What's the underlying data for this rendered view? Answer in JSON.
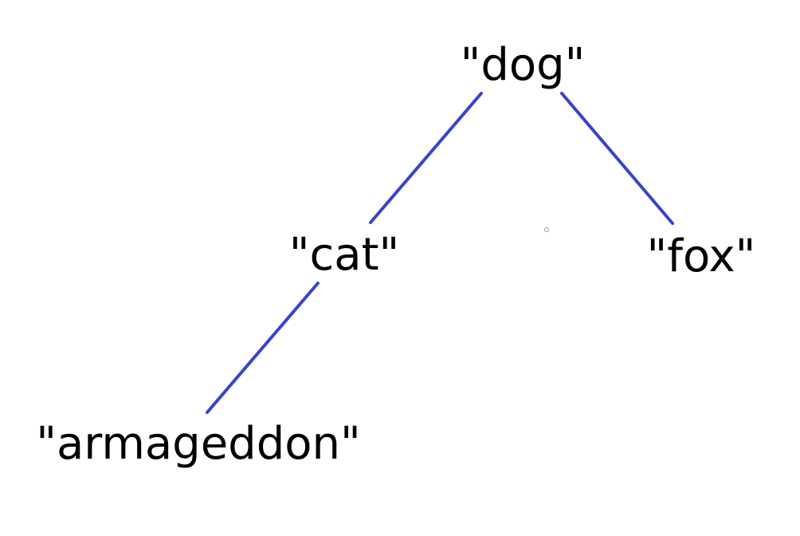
{
  "diagram": {
    "title": "",
    "edge_color": "#3b43c9",
    "text_color": "#000000",
    "dot_color": "#9a9a9a",
    "nodes": [
      {
        "id": "dog",
        "label": "\"dog\""
      },
      {
        "id": "cat",
        "label": "\"cat\""
      },
      {
        "id": "fox",
        "label": "\"fox\""
      },
      {
        "id": "armageddon",
        "label": "\"armageddon\""
      }
    ],
    "edges": [
      {
        "from": "dog",
        "to": "cat"
      },
      {
        "from": "dog",
        "to": "fox"
      },
      {
        "from": "cat",
        "to": "armageddon"
      }
    ]
  }
}
